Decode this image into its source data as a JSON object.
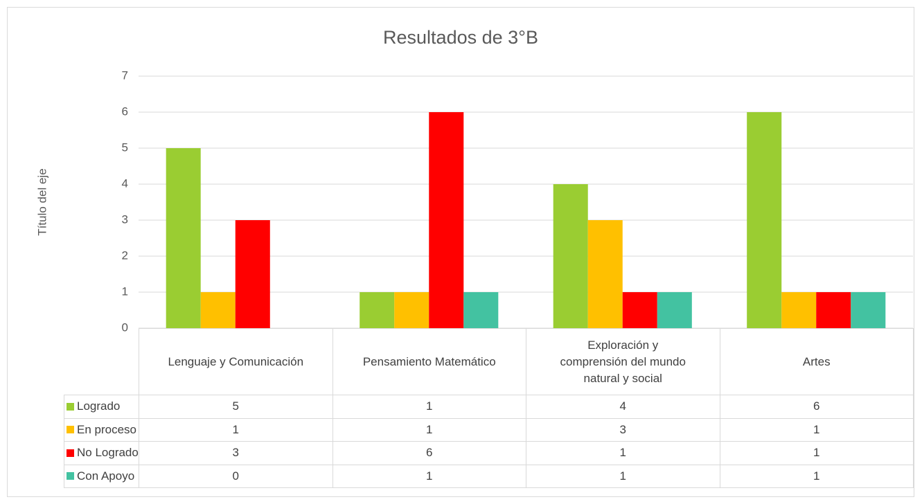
{
  "chart_data": {
    "type": "bar",
    "title": "Resultados de 3°B",
    "y_axis_label": "Título del eje",
    "categories": [
      "Lenguaje y Comunicación",
      "Pensamiento Matemático",
      "Exploración y comprensión del mundo natural y social",
      "Artes"
    ],
    "series": [
      {
        "name": "Logrado",
        "color": "#9acd32",
        "values": [
          5,
          1,
          4,
          6
        ]
      },
      {
        "name": "En proceso",
        "color": "#ffc000",
        "values": [
          1,
          1,
          3,
          1
        ]
      },
      {
        "name": "No Logrado",
        "color": "#ff0000",
        "values": [
          3,
          6,
          1,
          1
        ]
      },
      {
        "name": "Con Apoyo",
        "color": "#43c2a1",
        "values": [
          0,
          1,
          1,
          1
        ]
      }
    ],
    "ylim": [
      0,
      7
    ],
    "yticks": [
      0,
      1,
      2,
      3,
      4,
      5,
      6,
      7
    ],
    "grid": true,
    "data_table": true
  }
}
